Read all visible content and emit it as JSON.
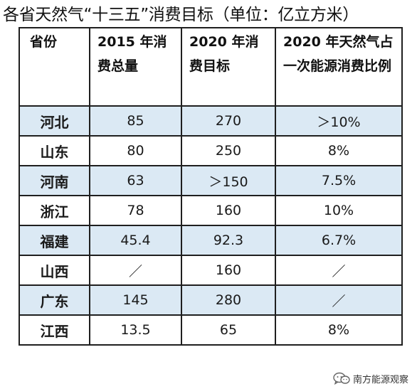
{
  "title": "各省天然气“十三五”消费目标（单位：亿立方米）",
  "table": {
    "headers": [
      "省份",
      "2015 年消费总量",
      "2020 年消费目标",
      "2020 年天然气占一次能源消费比例"
    ],
    "rows": [
      {
        "province": "河北",
        "consumption_2015": "85",
        "target_2020": "270",
        "share_2020": "＞10%"
      },
      {
        "province": "山东",
        "consumption_2015": "80",
        "target_2020": "250",
        "share_2020": "8%"
      },
      {
        "province": "河南",
        "consumption_2015": "63",
        "target_2020": "＞150",
        "share_2020": "7.5%"
      },
      {
        "province": "浙江",
        "consumption_2015": "78",
        "target_2020": "160",
        "share_2020": "10%"
      },
      {
        "province": "福建",
        "consumption_2015": "45.4",
        "target_2020": "92.3",
        "share_2020": "6.7%"
      },
      {
        "province": "山西",
        "consumption_2015": "／",
        "target_2020": "160",
        "share_2020": "／"
      },
      {
        "province": "广东",
        "consumption_2015": "145",
        "target_2020": "280",
        "share_2020": "／"
      },
      {
        "province": "江西",
        "consumption_2015": "13.5",
        "target_2020": "65",
        "share_2020": "8%"
      }
    ]
  },
  "watermark": {
    "icon": "wechat-icon",
    "text": "南方能源观察"
  },
  "colors": {
    "shaded_row": "#dbe9f4",
    "border": "#1f1f1f",
    "text": "#111111"
  }
}
